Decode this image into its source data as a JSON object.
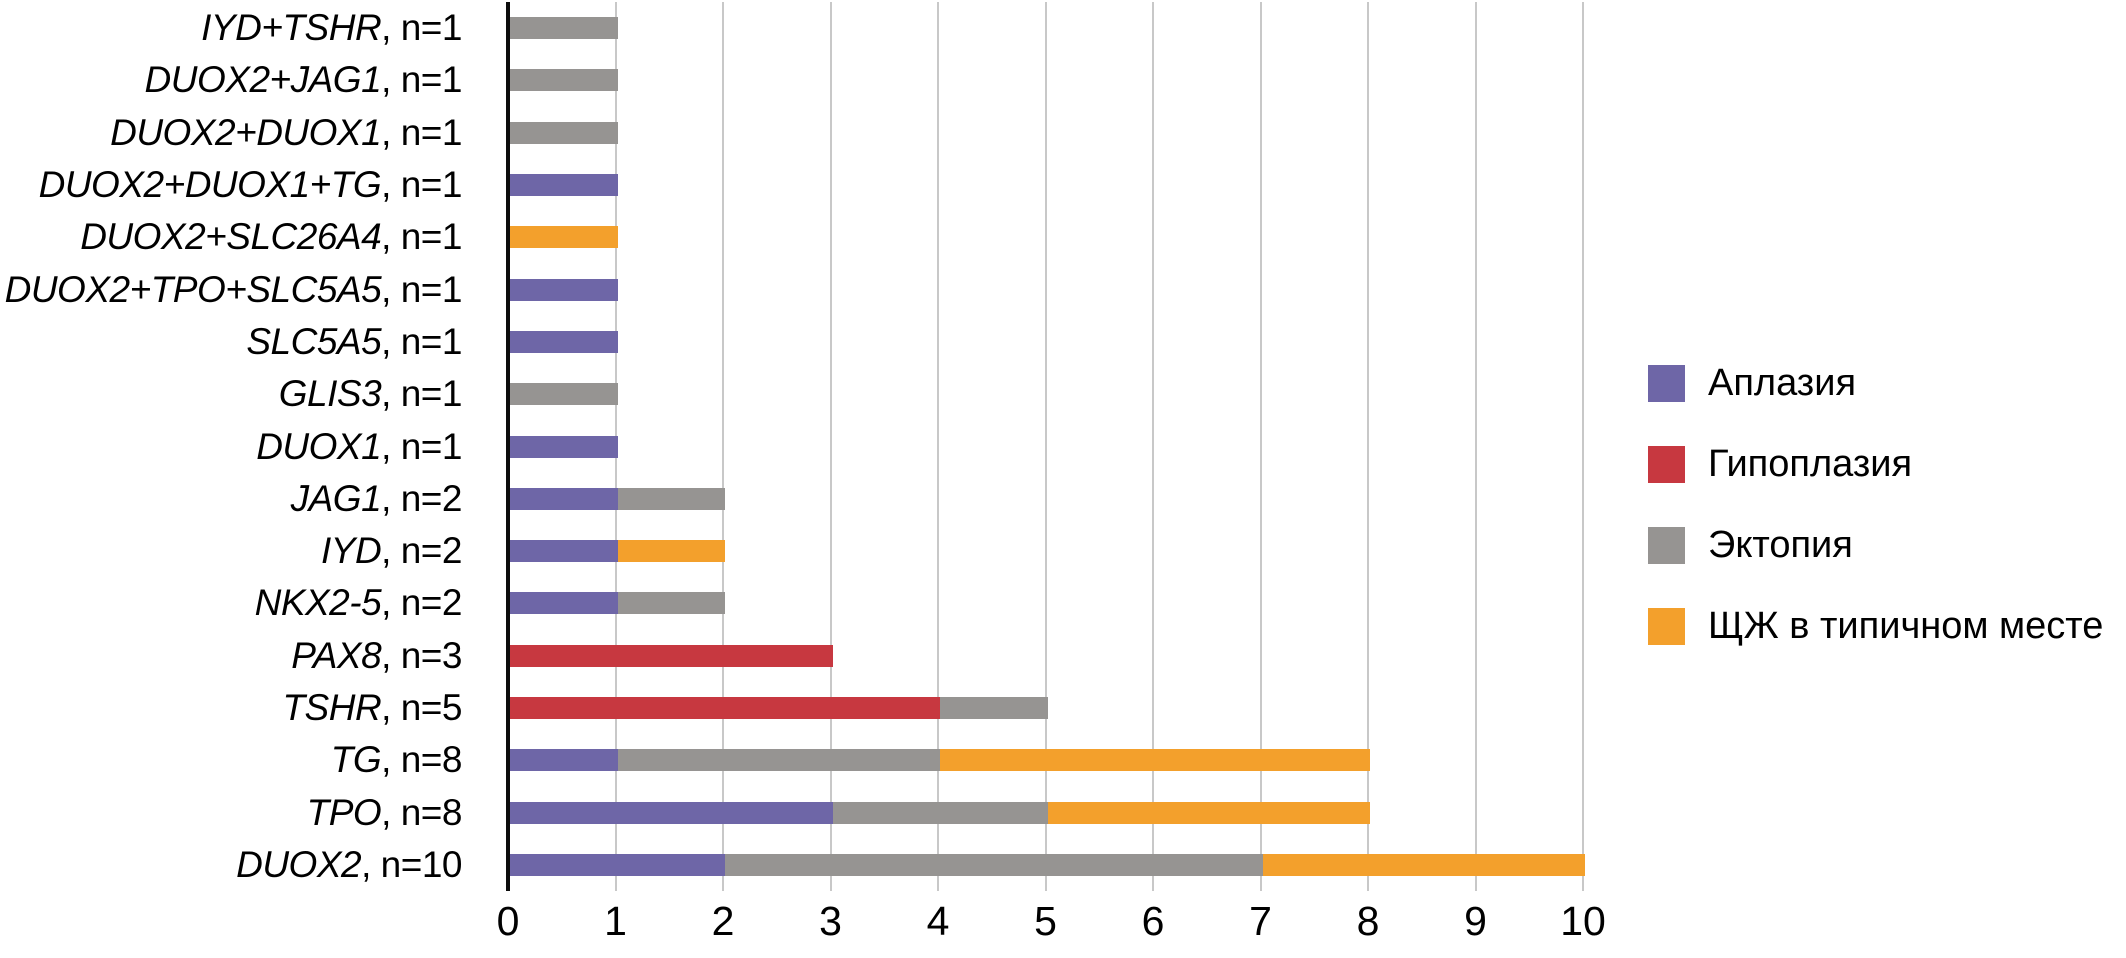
{
  "chart_data": {
    "type": "bar",
    "orientation": "horizontal_stacked",
    "title": "",
    "xlabel": "",
    "ylabel": "",
    "xlim": [
      0,
      10
    ],
    "xticks": [
      "0",
      "1",
      "2",
      "3",
      "4",
      "5",
      "6",
      "7",
      "8",
      "9",
      "10"
    ],
    "grid": "vertical",
    "legend_position": "right",
    "category_label_format": "{gene}, n={n}",
    "categories_top_to_bottom": [
      {
        "gene": "IYD+TSHR",
        "n": 1,
        "label": "IYD+TSHR, n=1"
      },
      {
        "gene": "DUOX2+JAG1",
        "n": 1,
        "label": "DUOX2+JAG1, n=1"
      },
      {
        "gene": "DUOX2+DUOX1",
        "n": 1,
        "label": "DUOX2+DUOX1, n=1"
      },
      {
        "gene": "DUOX2+DUOX1+TG",
        "n": 1,
        "label": "DUOX2+DUOX1+TG, n=1"
      },
      {
        "gene": "DUOX2+SLC26A4",
        "n": 1,
        "label": "DUOX2+SLC26A4, n=1"
      },
      {
        "gene": "DUOX2+TPO+SLC5A5",
        "n": 1,
        "label": "DUOX2+TPO+SLC5A5, n=1"
      },
      {
        "gene": "SLC5A5",
        "n": 1,
        "label": "SLC5A5, n=1"
      },
      {
        "gene": "GLIS3",
        "n": 1,
        "label": "GLIS3, n=1"
      },
      {
        "gene": "DUOX1",
        "n": 1,
        "label": "DUOX1, n=1"
      },
      {
        "gene": "JAG1",
        "n": 2,
        "label": "JAG1, n=2"
      },
      {
        "gene": "IYD",
        "n": 2,
        "label": "IYD, n=2"
      },
      {
        "gene": "NKX2-5",
        "n": 2,
        "label": "NKX2-5, n=2"
      },
      {
        "gene": "PAX8",
        "n": 3,
        "label": "PAX8, n=3"
      },
      {
        "gene": "TSHR",
        "n": 5,
        "label": "TSHR, n=5"
      },
      {
        "gene": "TG",
        "n": 8,
        "label": "TG, n=8"
      },
      {
        "gene": "TPO",
        "n": 8,
        "label": "TPO, n=8"
      },
      {
        "gene": "DUOX2",
        "n": 10,
        "label": "DUOX2, n=10"
      }
    ],
    "series": [
      {
        "name": "Аплазия",
        "color": "#6e66a7",
        "values": [
          0,
          0,
          0,
          1,
          0,
          1,
          1,
          0,
          1,
          1,
          1,
          1,
          0,
          0,
          1,
          3,
          2
        ]
      },
      {
        "name": "Гипоплазия",
        "color": "#c73840",
        "values": [
          0,
          0,
          0,
          0,
          0,
          0,
          0,
          0,
          0,
          0,
          0,
          0,
          3,
          4,
          0,
          0,
          0
        ]
      },
      {
        "name": "Эктопия",
        "color": "#969492",
        "values": [
          1,
          1,
          1,
          0,
          0,
          0,
          0,
          1,
          0,
          1,
          0,
          1,
          0,
          1,
          3,
          2,
          5
        ]
      },
      {
        "name": "ЩЖ в типичном месте",
        "color": "#f3a02c",
        "values": [
          0,
          0,
          0,
          0,
          1,
          0,
          0,
          0,
          0,
          0,
          1,
          0,
          0,
          0,
          4,
          3,
          3
        ]
      }
    ],
    "colors": {
      "axis_line": "#0d0d0d",
      "gridline": "#c8c8c8",
      "text": "#000000",
      "background": "#ffffff"
    }
  }
}
